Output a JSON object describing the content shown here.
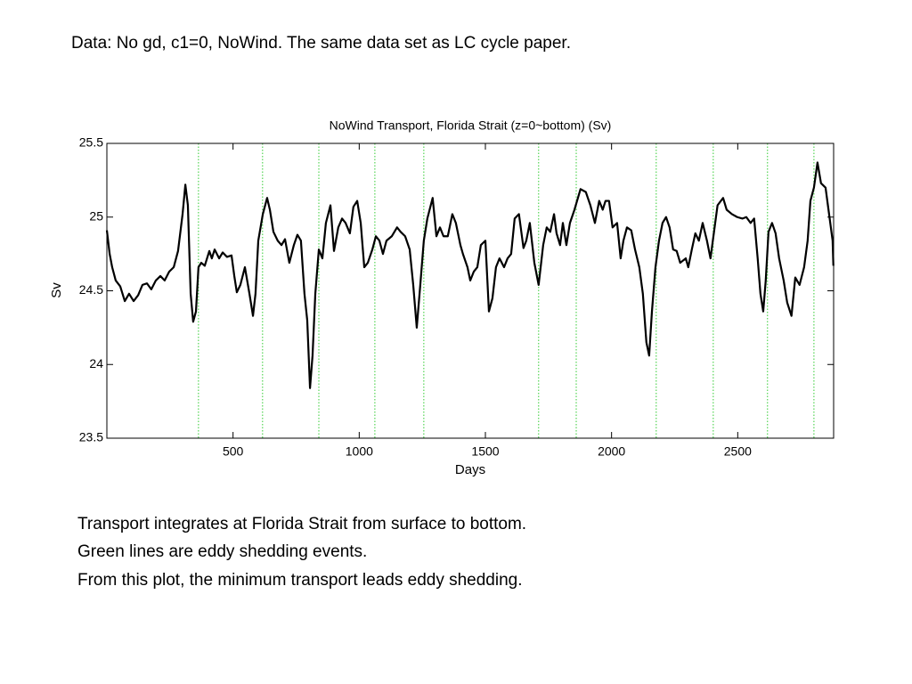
{
  "header": "Data: No gd, c1=0, NoWind. The same data set as LC cycle paper.",
  "chart_data": {
    "type": "line",
    "title": "NoWind Transport, Florida Strait (z=0~bottom) (Sv)",
    "xlabel": "Days",
    "ylabel": "Sv",
    "xlim": [
      0,
      2880
    ],
    "ylim": [
      23.5,
      25.5
    ],
    "xticks": [
      500,
      1000,
      1500,
      2000,
      2500
    ],
    "yticks": [
      23.5,
      24,
      24.5,
      25,
      25.5
    ],
    "grid": false,
    "x": [
      0,
      11,
      21,
      35,
      53,
      71,
      88,
      106,
      124,
      141,
      159,
      176,
      194,
      212,
      229,
      247,
      265,
      282,
      300,
      311,
      321,
      332,
      342,
      353,
      363,
      374,
      388,
      406,
      416,
      427,
      445,
      459,
      476,
      494,
      505,
      515,
      529,
      547,
      565,
      579,
      589,
      600,
      618,
      635,
      646,
      660,
      677,
      692,
      706,
      723,
      741,
      755,
      769,
      783,
      794,
      805,
      815,
      826,
      840,
      854,
      868,
      886,
      900,
      917,
      932,
      946,
      963,
      977,
      992,
      1006,
      1020,
      1034,
      1052,
      1066,
      1080,
      1094,
      1108,
      1129,
      1150,
      1164,
      1182,
      1200,
      1214,
      1228,
      1242,
      1256,
      1270,
      1291,
      1306,
      1320,
      1334,
      1351,
      1369,
      1383,
      1401,
      1411,
      1429,
      1440,
      1454,
      1468,
      1482,
      1500,
      1514,
      1528,
      1542,
      1556,
      1574,
      1588,
      1602,
      1616,
      1633,
      1651,
      1662,
      1676,
      1694,
      1711,
      1729,
      1743,
      1757,
      1772,
      1782,
      1796,
      1807,
      1821,
      1835,
      1853,
      1877,
      1898,
      1916,
      1934,
      1951,
      1965,
      1976,
      1990,
      2004,
      2022,
      2036,
      2047,
      2061,
      2078,
      2093,
      2110,
      2124,
      2138,
      2149,
      2160,
      2174,
      2188,
      2202,
      2216,
      2230,
      2244,
      2258,
      2272,
      2294,
      2304,
      2318,
      2332,
      2346,
      2361,
      2378,
      2392,
      2406,
      2420,
      2442,
      2456,
      2477,
      2498,
      2519,
      2534,
      2551,
      2565,
      2579,
      2590,
      2601,
      2611,
      2622,
      2636,
      2650,
      2664,
      2682,
      2696,
      2713,
      2728,
      2745,
      2763,
      2777,
      2788,
      2802,
      2816,
      2830,
      2848,
      2862,
      2876,
      2879
    ],
    "series": [
      {
        "color": "#000000",
        "values": [
          24.91,
          24.75,
          24.66,
          24.57,
          24.53,
          24.43,
          24.48,
          24.43,
          24.47,
          24.54,
          24.55,
          24.51,
          24.57,
          24.6,
          24.57,
          24.63,
          24.66,
          24.77,
          25.02,
          25.22,
          25.08,
          24.48,
          24.29,
          24.36,
          24.66,
          24.69,
          24.67,
          24.77,
          24.72,
          24.78,
          24.72,
          24.76,
          24.73,
          24.74,
          24.6,
          24.49,
          24.54,
          24.66,
          24.48,
          24.33,
          24.48,
          24.84,
          25.02,
          25.13,
          25.05,
          24.9,
          24.84,
          24.81,
          24.85,
          24.69,
          24.81,
          24.88,
          24.84,
          24.48,
          24.3,
          23.84,
          24.06,
          24.48,
          24.78,
          24.72,
          24.96,
          25.08,
          24.77,
          24.93,
          24.99,
          24.96,
          24.89,
          25.07,
          25.11,
          24.96,
          24.66,
          24.69,
          24.78,
          24.87,
          24.84,
          24.75,
          24.84,
          24.87,
          24.93,
          24.9,
          24.87,
          24.78,
          24.54,
          24.25,
          24.54,
          24.84,
          24.99,
          25.13,
          24.87,
          24.93,
          24.87,
          24.87,
          25.02,
          24.96,
          24.81,
          24.75,
          24.66,
          24.57,
          24.63,
          24.66,
          24.81,
          24.84,
          24.36,
          24.45,
          24.66,
          24.72,
          24.66,
          24.72,
          24.75,
          24.99,
          25.02,
          24.79,
          24.84,
          24.96,
          24.69,
          24.54,
          24.81,
          24.93,
          24.9,
          25.02,
          24.89,
          24.81,
          24.96,
          24.81,
          24.96,
          25.05,
          25.19,
          25.17,
          25.08,
          24.96,
          25.11,
          25.05,
          25.11,
          25.11,
          24.93,
          24.96,
          24.72,
          24.84,
          24.93,
          24.91,
          24.78,
          24.66,
          24.48,
          24.15,
          24.06,
          24.36,
          24.66,
          24.84,
          24.96,
          25.0,
          24.93,
          24.78,
          24.77,
          24.69,
          24.72,
          24.66,
          24.78,
          24.89,
          24.84,
          24.96,
          24.84,
          24.72,
          24.9,
          25.08,
          25.13,
          25.05,
          25.02,
          25.0,
          24.99,
          25.0,
          24.96,
          24.99,
          24.72,
          24.48,
          24.36,
          24.57,
          24.9,
          24.96,
          24.89,
          24.72,
          24.57,
          24.42,
          24.33,
          24.59,
          24.54,
          24.66,
          24.84,
          25.11,
          25.2,
          25.37,
          25.23,
          25.2,
          25.02,
          24.84,
          24.67
        ]
      }
    ],
    "events": [
      363,
      617,
      840,
      1062,
      1256,
      1711,
      1860,
      2177,
      2403,
      2618,
      2802
    ],
    "events_color": "#33cc33"
  },
  "notes": [
    "Transport integrates at Florida Strait from surface to bottom.",
    "Green lines are eddy shedding events.",
    "From this plot, the minimum transport leads eddy shedding."
  ]
}
